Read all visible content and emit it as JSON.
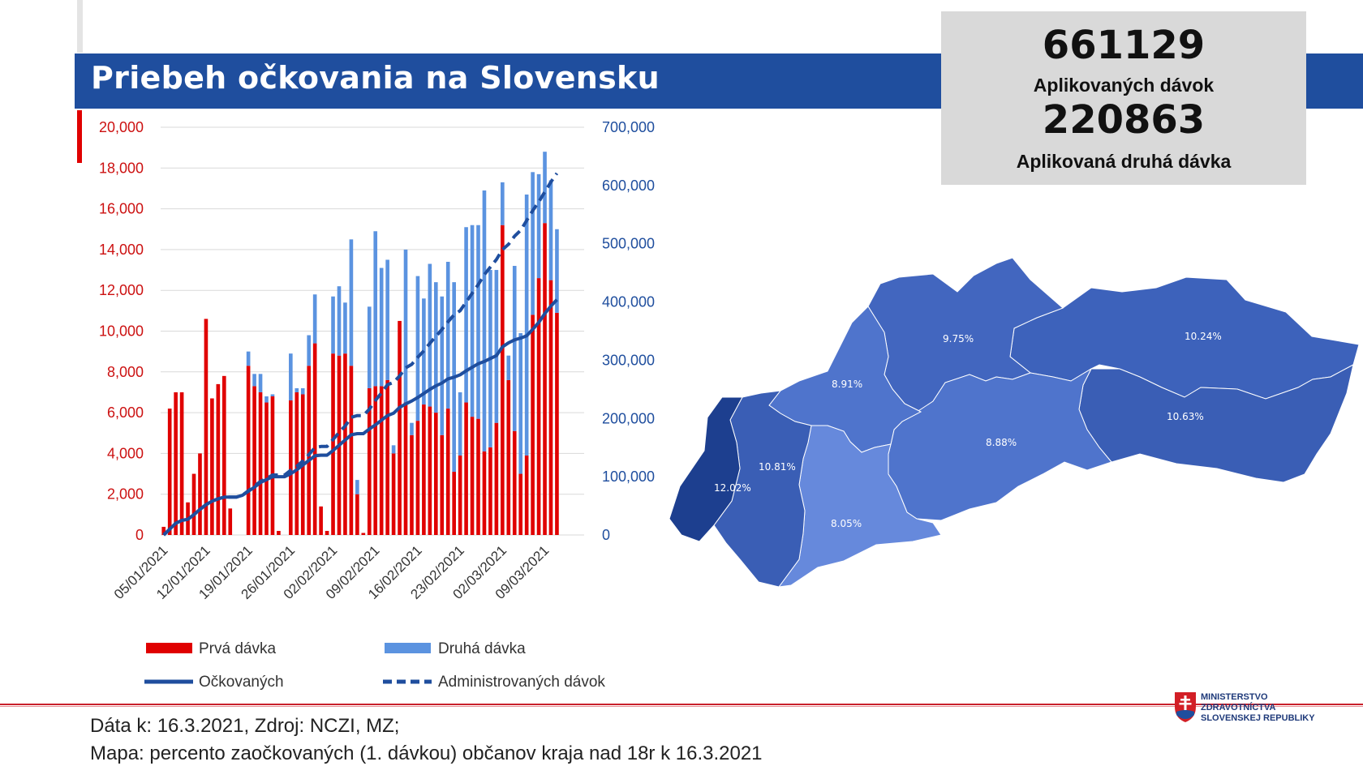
{
  "title": "Priebeh očkovania na Slovensku",
  "stats": {
    "applied_doses_value": "661129",
    "applied_doses_label": "Aplikovaných dávok",
    "second_dose_value": "220863",
    "second_dose_label": "Aplikovaná druhá dávka"
  },
  "footer": {
    "line1": "Dáta k: 16.3.2021, Zdroj: NCZI, MZ;",
    "line2": "Mapa: percento zaočkovaných (1. dávkou) občanov kraja nad 18r k 16.3.2021"
  },
  "ministry": {
    "line1": "MINISTERSTVO",
    "line2": "ZDRAVOTNÍCTVA",
    "line3": "SLOVENSKEJ REPUBLIKY"
  },
  "colors": {
    "banner": "#1f4e9e",
    "first_dose": "#e00000",
    "second_dose": "#5b93e0",
    "line": "#1f4e9e"
  },
  "chart_data": {
    "type": "bar",
    "y_left_ticks": [
      "0",
      "2,000",
      "4,000",
      "6,000",
      "8,000",
      "10,000",
      "12,000",
      "14,000",
      "16,000",
      "18,000",
      "20,000"
    ],
    "y_right_ticks": [
      "0",
      "100,000",
      "200,000",
      "300,000",
      "400,000",
      "500,000",
      "600,000",
      "700,000"
    ],
    "ylim_left": [
      0,
      20000
    ],
    "ylim_right": [
      0,
      700000
    ],
    "x_tick_labels": [
      "05/01/2021",
      "12/01/2021",
      "19/01/2021",
      "26/01/2021",
      "02/02/2021",
      "09/02/2021",
      "16/02/2021",
      "23/02/2021",
      "02/03/2021",
      "09/03/2021"
    ],
    "dates": [
      "05/01",
      "06/01",
      "07/01",
      "08/01",
      "09/01",
      "10/01",
      "11/01",
      "12/01",
      "13/01",
      "14/01",
      "15/01",
      "16/01",
      "17/01",
      "18/01",
      "19/01",
      "20/01",
      "21/01",
      "22/01",
      "23/01",
      "24/01",
      "25/01",
      "26/01",
      "27/01",
      "28/01",
      "29/01",
      "30/01",
      "31/01",
      "01/02",
      "02/02",
      "03/02",
      "04/02",
      "05/02",
      "06/02",
      "07/02",
      "08/02",
      "09/02",
      "10/02",
      "11/02",
      "12/02",
      "13/02",
      "14/02",
      "15/02",
      "16/02",
      "17/02",
      "18/02",
      "19/02",
      "20/02",
      "21/02",
      "22/02",
      "23/02",
      "24/02",
      "25/02",
      "26/02",
      "27/02",
      "28/02",
      "01/03",
      "02/03",
      "03/03",
      "04/03",
      "05/03",
      "06/03",
      "07/03",
      "08/03",
      "09/03",
      "10/03",
      "11/03",
      "12/03",
      "13/03",
      "14/03",
      "15/03"
    ],
    "series": [
      {
        "name": "Prvá dávka",
        "kind": "bar",
        "axis": "left",
        "values": [
          400,
          6200,
          7000,
          7000,
          1600,
          3000,
          4000,
          10600,
          6700,
          7400,
          7800,
          1300,
          0,
          0,
          8300,
          7300,
          7000,
          6500,
          6800,
          200,
          0,
          6600,
          7000,
          6900,
          8300,
          9400,
          1400,
          200,
          8900,
          8800,
          8900,
          8300,
          2000,
          100,
          7200,
          7300,
          7300,
          7600,
          4000,
          10500,
          6500,
          4900,
          5600,
          6400,
          6300,
          6000,
          4900,
          6200,
          3100,
          3900,
          6500,
          5800,
          5700,
          4100,
          4300,
          5500,
          15200,
          7600,
          5100,
          3000,
          3900,
          10800,
          12600,
          15300,
          12500,
          10900,
          0,
          0,
          0,
          0
        ]
      },
      {
        "name": "Druhá dávka",
        "kind": "bar",
        "axis": "left",
        "values": [
          0,
          0,
          0,
          0,
          0,
          0,
          0,
          0,
          0,
          0,
          0,
          0,
          0,
          0,
          700,
          600,
          900,
          300,
          100,
          0,
          0,
          2300,
          200,
          300,
          1500,
          2400,
          0,
          0,
          2800,
          3400,
          2500,
          6200,
          700,
          0,
          4000,
          7600,
          5800,
          5900,
          400,
          0,
          7500,
          600,
          7100,
          5200,
          7000,
          6400,
          6800,
          7200,
          9300,
          3100,
          8600,
          9400,
          9500,
          12800,
          8700,
          7500,
          2100,
          1200,
          8100,
          6900,
          12800,
          7000,
          5100,
          3500,
          4900,
          4100,
          0,
          0,
          0,
          0
        ]
      },
      {
        "name": "Očkovaných",
        "kind": "line",
        "axis": "right",
        "values": [
          0,
          10000,
          20000,
          25000,
          27000,
          35000,
          44000,
          52000,
          58000,
          62000,
          65000,
          65000,
          65000,
          68000,
          75000,
          82000,
          90000,
          95000,
          100000,
          100000,
          100000,
          105000,
          112000,
          120000,
          128000,
          136000,
          137000,
          137000,
          145000,
          154000,
          163000,
          172000,
          174000,
          174000,
          182000,
          189000,
          197000,
          205000,
          209000,
          219000,
          225000,
          230000,
          236000,
          243000,
          250000,
          256000,
          261000,
          268000,
          271000,
          275000,
          282000,
          288000,
          294000,
          298000,
          303000,
          308000,
          323000,
          330000,
          335000,
          338000,
          342000,
          353000,
          365000,
          380000,
          393000,
          404000,
          412000,
          412000,
          412000,
          412000
        ]
      },
      {
        "name": "Administrovaných dávok",
        "kind": "dashed-line",
        "axis": "right",
        "values": [
          0,
          10000,
          20000,
          25000,
          27000,
          35000,
          44000,
          52000,
          58000,
          62000,
          65000,
          65000,
          65000,
          68000,
          76000,
          84000,
          92000,
          97000,
          103000,
          103000,
          103000,
          111000,
          118000,
          127000,
          138000,
          150000,
          152000,
          152000,
          164000,
          176000,
          187000,
          202000,
          205000,
          205000,
          216000,
          231000,
          244000,
          258000,
          262000,
          273000,
          287000,
          293000,
          305000,
          316000,
          329000,
          341000,
          353000,
          366000,
          378000,
          385000,
          400000,
          415000,
          430000,
          447000,
          460000,
          473000,
          490000,
          499000,
          513000,
          523000,
          540000,
          557000,
          572000,
          589000,
          606000,
          621000,
          658000,
          658000,
          658000,
          658000
        ]
      }
    ],
    "legend": [
      "Prvá dávka",
      "Druhá dávka",
      "Očkovaných",
      "Administrovaných dávok"
    ],
    "legend_position": "bottom"
  },
  "map_data": {
    "regions": [
      {
        "id": "bratislava",
        "value": "12.02%",
        "color": "#1d3f8f"
      },
      {
        "id": "trnava",
        "value": "10.81%",
        "color": "#3a5eb5"
      },
      {
        "id": "nitra",
        "value": "8.05%",
        "color": "#6689dc"
      },
      {
        "id": "trencin",
        "value": "8.91%",
        "color": "#4f74cc"
      },
      {
        "id": "zilina",
        "value": "9.75%",
        "color": "#4266bf"
      },
      {
        "id": "banska-bystrica",
        "value": "8.88%",
        "color": "#4f74cc"
      },
      {
        "id": "presov",
        "value": "10.24%",
        "color": "#3d62bb"
      },
      {
        "id": "kosice",
        "value": "10.63%",
        "color": "#3a5eb5"
      }
    ]
  }
}
